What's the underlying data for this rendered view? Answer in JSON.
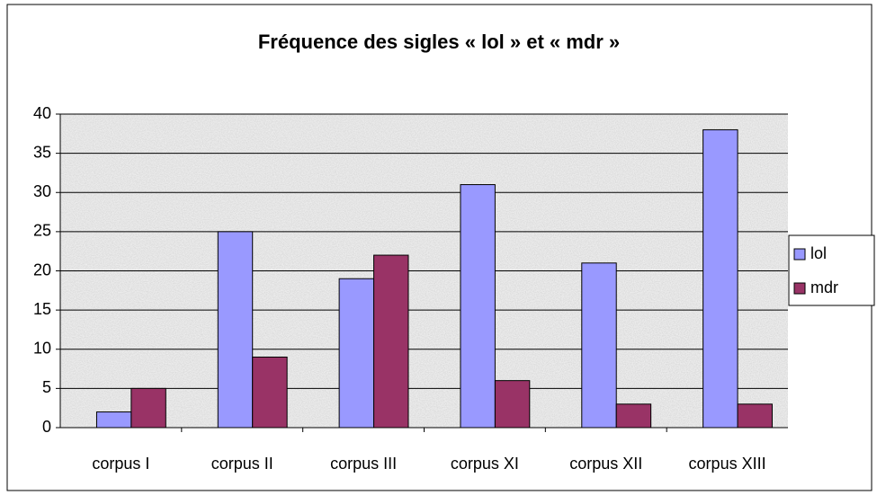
{
  "chart_data": {
    "type": "bar",
    "title": "Fréquence des sigles « lol » et « mdr »",
    "categories": [
      "corpus I",
      "corpus II",
      "corpus III",
      "corpus XI",
      "corpus XII",
      "corpus XIII"
    ],
    "series": [
      {
        "name": "lol",
        "color": "#9999ff",
        "values": [
          2,
          25,
          19,
          31,
          21,
          38
        ]
      },
      {
        "name": "mdr",
        "color": "#993366",
        "values": [
          5,
          9,
          22,
          6,
          3,
          3
        ]
      }
    ],
    "ylim": [
      0,
      40
    ],
    "yticks": [
      0,
      5,
      10,
      15,
      20,
      25,
      30,
      35,
      40
    ],
    "grid": true,
    "legend": "right"
  }
}
